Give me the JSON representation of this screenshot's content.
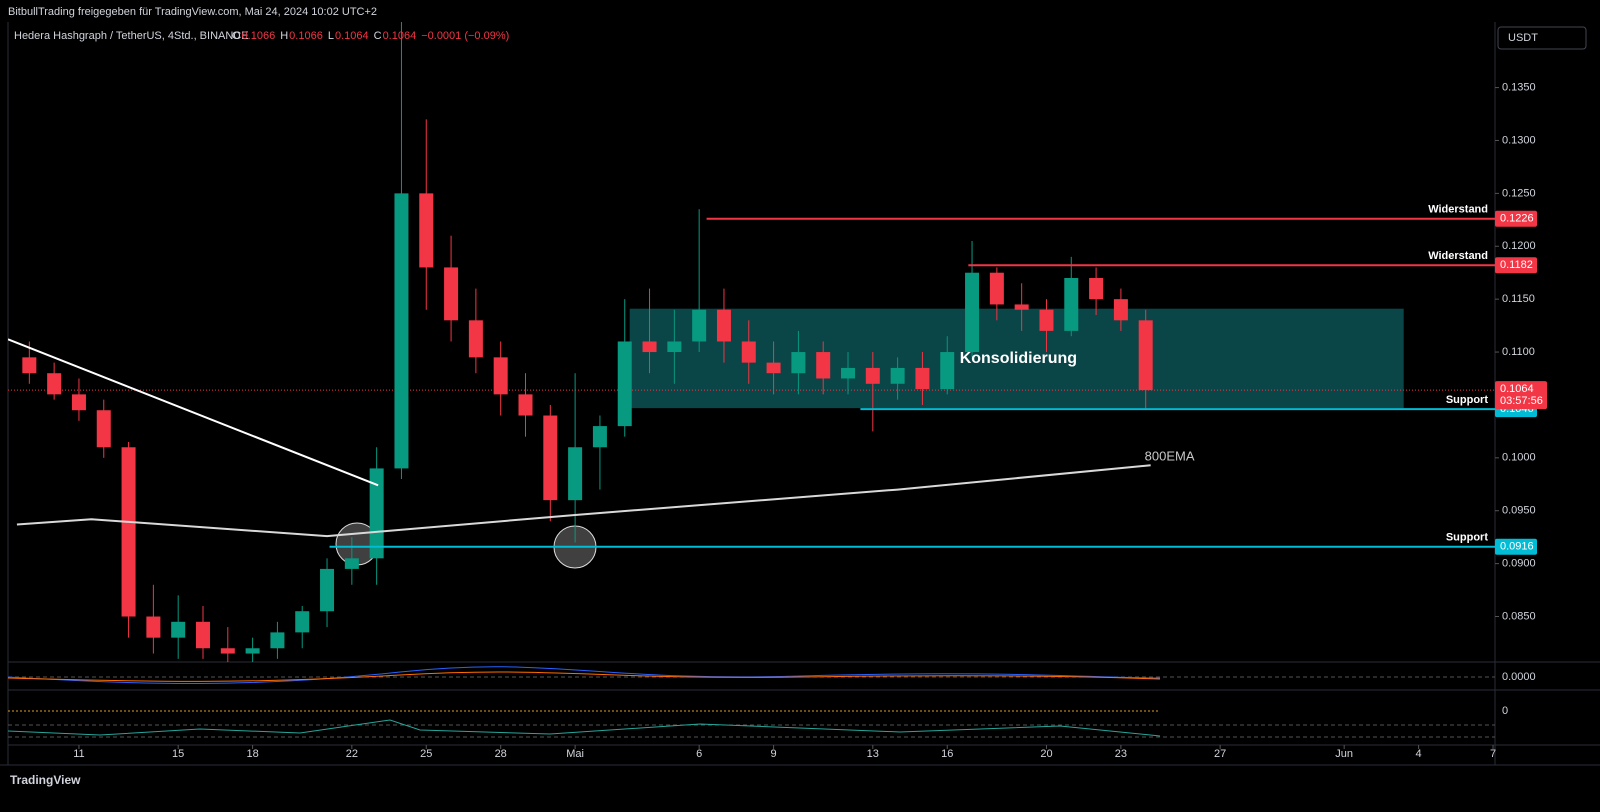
{
  "header": {
    "shared": "BitbullTrading freigegeben für TradingView.com, Mai 24, 2024 10:02 UTC+2",
    "currency": "USDT",
    "brand": "TradingView"
  },
  "chart_data": {
    "type": "candlestick",
    "title": "Hedera Hashgraph / TetherUS, 4Std., BINANCE",
    "ohlc": [
      {
        "key": "O",
        "value": 0.1066
      },
      {
        "key": "H",
        "value": 0.1066
      },
      {
        "key": "L",
        "value": 0.1064
      },
      {
        "key": "C",
        "value": 0.1064
      }
    ],
    "change": "−0.0001 (−0.09%)",
    "up_color": "#089981",
    "down_color": "#f23645",
    "x": [
      9,
      10,
      11,
      12,
      13,
      14,
      15,
      16,
      17,
      18,
      19,
      20,
      21,
      22,
      23,
      24,
      25,
      26,
      27,
      28,
      29,
      30,
      31,
      32,
      33,
      34,
      35,
      36,
      37,
      38,
      39,
      40,
      41,
      42,
      43,
      44,
      45,
      46,
      47,
      48,
      49,
      50,
      51,
      52,
      53,
      54
    ],
    "open": [
      0.1095,
      0.108,
      0.106,
      0.1045,
      0.101,
      0.085,
      0.083,
      0.0845,
      0.082,
      0.0815,
      0.082,
      0.0835,
      0.0855,
      0.0895,
      0.0905,
      0.099,
      0.125,
      0.118,
      0.113,
      0.1095,
      0.106,
      0.104,
      0.096,
      0.101,
      0.103,
      0.111,
      0.11,
      0.111,
      0.114,
      0.111,
      0.109,
      0.108,
      0.11,
      0.1075,
      0.1085,
      0.107,
      0.1085,
      0.1065,
      0.11,
      0.1175,
      0.1145,
      0.114,
      0.112,
      0.117,
      0.115,
      0.113
    ],
    "high": [
      0.111,
      0.109,
      0.1075,
      0.1055,
      0.1015,
      0.088,
      0.087,
      0.086,
      0.084,
      0.083,
      0.0845,
      0.086,
      0.0905,
      0.0925,
      0.101,
      0.142,
      0.132,
      0.121,
      0.116,
      0.111,
      0.108,
      0.105,
      0.108,
      0.104,
      0.115,
      0.116,
      0.114,
      0.1235,
      0.116,
      0.113,
      0.111,
      0.112,
      0.111,
      0.11,
      0.11,
      0.1095,
      0.11,
      0.1115,
      0.1205,
      0.118,
      0.1165,
      0.115,
      0.119,
      0.118,
      0.116,
      0.114
    ],
    "low": [
      0.107,
      0.1055,
      0.1035,
      0.1,
      0.083,
      0.0815,
      0.081,
      0.081,
      0.08,
      0.0805,
      0.081,
      0.082,
      0.084,
      0.088,
      0.088,
      0.098,
      0.114,
      0.111,
      0.108,
      0.104,
      0.102,
      0.094,
      0.092,
      0.097,
      0.102,
      0.108,
      0.107,
      0.11,
      0.109,
      0.107,
      0.106,
      0.106,
      0.106,
      0.106,
      0.1025,
      0.1055,
      0.105,
      0.106,
      0.1095,
      0.113,
      0.112,
      0.11,
      0.1115,
      0.1135,
      0.112,
      0.1046
    ],
    "close": [
      0.108,
      0.106,
      0.1045,
      0.101,
      0.085,
      0.083,
      0.0845,
      0.082,
      0.0815,
      0.082,
      0.0835,
      0.0855,
      0.0895,
      0.0905,
      0.099,
      0.125,
      0.118,
      0.113,
      0.1095,
      0.106,
      0.104,
      0.096,
      0.101,
      0.103,
      0.111,
      0.11,
      0.111,
      0.114,
      0.111,
      0.109,
      0.108,
      0.11,
      0.1075,
      0.1085,
      0.107,
      0.1085,
      0.1065,
      0.11,
      0.1175,
      0.1145,
      0.114,
      0.112,
      0.117,
      0.115,
      0.113,
      0.1064
    ],
    "xlim": [
      8.14,
      68.08
    ],
    "xticks": [
      11,
      15,
      18,
      22,
      25,
      28,
      {
        "value": 31,
        "label": "Mai"
      },
      {
        "value": 36,
        "label": "6"
      },
      {
        "value": 39,
        "label": "9"
      },
      {
        "value": 43,
        "label": "13"
      },
      {
        "value": 46,
        "label": "16"
      },
      {
        "value": 50,
        "label": "20"
      },
      {
        "value": 53,
        "label": "23"
      },
      {
        "value": 57,
        "label": "27"
      },
      {
        "value": 62,
        "label": "Jun"
      },
      {
        "value": 65,
        "label": "4"
      },
      {
        "value": 68,
        "label": "7"
      }
    ],
    "ylim": [
      0.0807,
      0.1412
    ],
    "yticks": [
      {
        "value": 0.085,
        "label": "0.0850"
      },
      {
        "value": 0.09,
        "label": "0.0900"
      },
      {
        "value": 0.095,
        "label": "0.0950"
      },
      {
        "value": 0.1,
        "label": "0.1000"
      },
      {
        "value": 0.105,
        "label": "0.1050"
      },
      {
        "value": 0.11,
        "label": "0.1100"
      },
      {
        "value": 0.115,
        "label": "0.1150"
      },
      {
        "value": 0.12,
        "label": "0.1200"
      },
      {
        "value": 0.125,
        "label": "0.1250"
      },
      {
        "value": 0.13,
        "label": "0.1300"
      },
      {
        "value": 0.135,
        "label": "0.1350"
      }
    ],
    "lines": [
      {
        "name": "800EMA",
        "color": "#d9d9d9",
        "x": [
          8.5,
          11.5,
          21,
          31,
          44,
          54.2
        ],
        "values": [
          0.0937,
          0.0942,
          0.0926,
          0.0946,
          0.097,
          0.0993
        ]
      },
      {
        "color": "#ffffff",
        "x": [
          8.14,
          23.06
        ],
        "values": [
          0.1112,
          0.0974
        ]
      }
    ],
    "zone": {
      "label": "Konsolidierung",
      "color": "#0e5c5f",
      "x": [
        33.2,
        64.4
      ],
      "values": [
        0.1141,
        0.1047
      ]
    },
    "levels": [
      {
        "label": "Widerstand",
        "value": 0.1226,
        "x": 36.3,
        "color": "#f23645"
      },
      {
        "label": "Widerstand",
        "value": 0.1182,
        "x": 46.85,
        "color": "#f23645"
      },
      {
        "label": "Support",
        "value": 0.1046,
        "x": 42.5,
        "color": "#00bcd4"
      },
      {
        "label": "Support",
        "value": 0.0916,
        "x": 21.1,
        "color": "#00bcd4"
      }
    ],
    "last_price": {
      "value": 0.1064,
      "countdown": "03:57:56",
      "color": "#f23645"
    },
    "panes": [
      {
        "ytick": {
          "value": 0,
          "label": "0.0000"
        }
      },
      {
        "ytick": 0
      }
    ]
  }
}
